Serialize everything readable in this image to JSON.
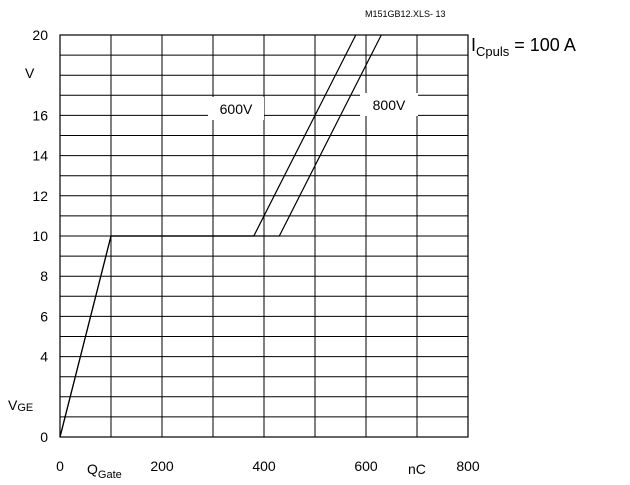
{
  "chart_data": {
    "type": "line",
    "source_id": "M151GB12.XLS- 13",
    "annotation": {
      "main": "I",
      "sub": "Cpuls",
      "rest": " = 100 A"
    },
    "y_unit": "V",
    "y_symbol": {
      "main": "V",
      "sub": "GE"
    },
    "x_symbol": {
      "main": "Q",
      "sub": "Gate"
    },
    "x_unit": "nC",
    "xlim": [
      0,
      800
    ],
    "ylim": [
      0,
      20
    ],
    "x_ticks": [
      0,
      200,
      400,
      600,
      800
    ],
    "y_ticks": [
      0,
      4,
      6,
      8,
      10,
      12,
      14,
      16,
      20
    ],
    "grid": true,
    "series": [
      {
        "name": "600V",
        "x": [
          0,
          100,
          380,
          580
        ],
        "y": [
          0,
          10,
          10,
          20
        ]
      },
      {
        "name": "800V",
        "x": [
          0,
          100,
          430,
          630
        ],
        "y": [
          0,
          10,
          10,
          20
        ]
      }
    ]
  }
}
